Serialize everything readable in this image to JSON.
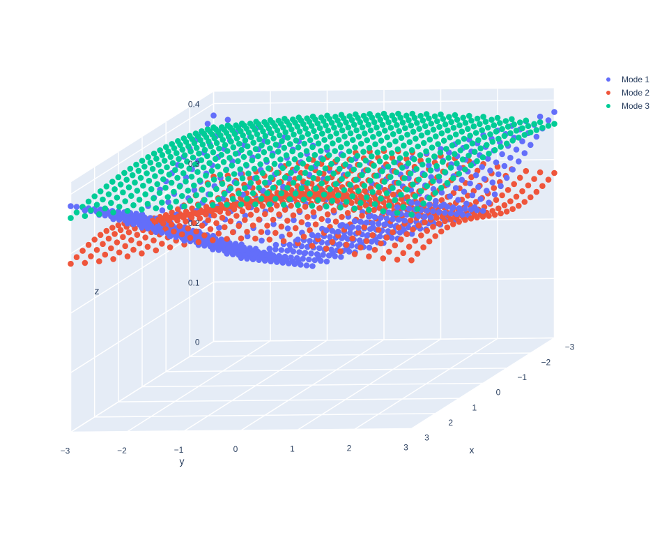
{
  "chart_data": {
    "type": "scatter3d",
    "title": "",
    "axes": {
      "x": {
        "label": "x",
        "ticks": [
          "−3",
          "−2",
          "−1",
          "0",
          "1",
          "2",
          "3"
        ],
        "range": [
          -3,
          3
        ]
      },
      "y": {
        "label": "y",
        "ticks": [
          "−3",
          "−2",
          "−1",
          "0",
          "1",
          "2",
          "3"
        ],
        "range": [
          -3,
          3
        ]
      },
      "z": {
        "label": "z",
        "ticks": [
          "0",
          "0.1",
          "0.2",
          "0.3",
          "0.4"
        ],
        "range": [
          0,
          0.42
        ]
      }
    },
    "grid": "on",
    "legend_position": "top-right",
    "grid_spec": {
      "xy_from": -3,
      "xy_to": 3,
      "points_per_side": 25
    },
    "series": [
      {
        "name": "Mode 1",
        "color": "#636efa",
        "formula": "z = 0.2 + 0.03*(|x|+|y|)"
      },
      {
        "name": "Mode 2",
        "color": "#ef553b",
        "formula": "z = 0.3 + 0.02*(sin(x)+cos(y))"
      },
      {
        "name": "Mode 3",
        "color": "#00cc96",
        "formula": "z = 0.4 - 0.02*(x^2+y^2)/9"
      }
    ]
  }
}
